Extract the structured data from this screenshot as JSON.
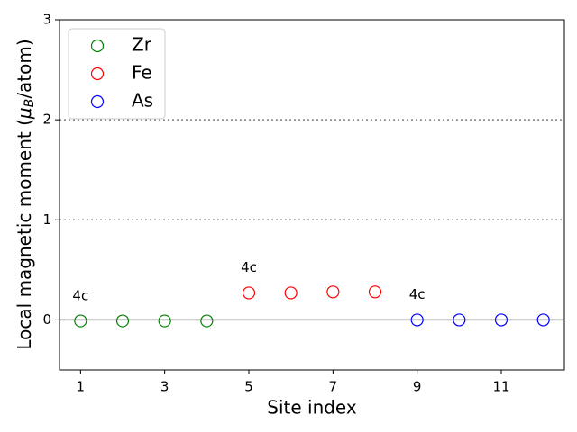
{
  "chart_data": {
    "type": "scatter",
    "xlabel": "Site index",
    "ylabel_parts": [
      "Local magnetic moment (",
      "μ",
      "B",
      "/atom)"
    ],
    "xlim": [
      0.5,
      12.5
    ],
    "ylim": [
      -0.5,
      3
    ],
    "xticks": [
      1,
      3,
      5,
      7,
      9,
      11
    ],
    "yticks": [
      0,
      1,
      2,
      3
    ],
    "legend": "upper left",
    "marker": "open-circle",
    "series": [
      {
        "name": "Zr",
        "color": "#008000",
        "x": [
          1,
          2,
          3,
          4
        ],
        "values": [
          -0.01,
          -0.01,
          -0.01,
          -0.01
        ]
      },
      {
        "name": "Fe",
        "color": "#ff0000",
        "x": [
          5,
          6,
          7,
          8
        ],
        "values": [
          0.27,
          0.27,
          0.28,
          0.28
        ]
      },
      {
        "name": "As",
        "color": "#0000ff",
        "x": [
          9,
          10,
          11,
          12
        ],
        "values": [
          0.0,
          0.0,
          0.0,
          0.0
        ]
      }
    ],
    "hlines": [
      {
        "value": 0,
        "style": "solid",
        "color": "#808080"
      },
      {
        "value": 1,
        "style": "dotted",
        "color": "#808080"
      },
      {
        "value": 2,
        "style": "dotted",
        "color": "#808080"
      }
    ],
    "annotations": [
      {
        "text": "4c",
        "x": 1,
        "y": 0.24
      },
      {
        "text": "4c",
        "x": 5,
        "y": 0.52
      },
      {
        "text": "4c",
        "x": 9,
        "y": 0.25
      }
    ]
  }
}
